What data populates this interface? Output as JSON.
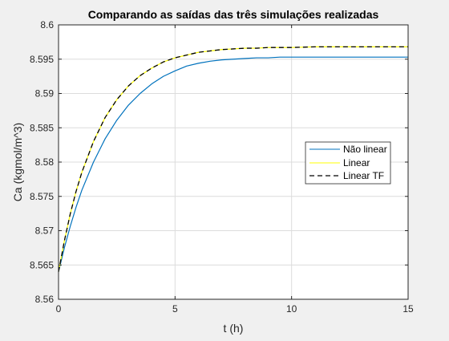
{
  "chart_data": {
    "type": "line",
    "title": "Comparando as saídas das três simulações realizadas",
    "xlabel": "t (h)",
    "ylabel": "Ca (kgmol/m^3)",
    "xlim": [
      0,
      15
    ],
    "ylim": [
      8.56,
      8.6
    ],
    "x_ticks": [
      "0",
      "5",
      "10",
      "15"
    ],
    "y_ticks": [
      "8.56",
      "8.565",
      "8.57",
      "8.575",
      "8.58",
      "8.585",
      "8.59",
      "8.595",
      "8.6"
    ],
    "grid": true,
    "legend_placement": "right",
    "x": [
      0,
      0.25,
      0.5,
      0.75,
      1,
      1.5,
      2,
      2.5,
      3,
      3.5,
      4,
      4.5,
      5,
      5.5,
      6,
      6.5,
      7,
      7.5,
      8,
      8.5,
      9,
      9.5,
      10,
      11,
      12,
      13,
      14,
      15
    ],
    "series": [
      {
        "name": "Não linear",
        "color": "#0072bd",
        "style": "solid",
        "values": [
          8.564,
          8.5675,
          8.5706,
          8.5734,
          8.5759,
          8.58,
          8.5834,
          8.5861,
          8.5883,
          8.59,
          8.5914,
          8.5925,
          8.5933,
          8.594,
          8.5944,
          8.5947,
          8.5949,
          8.595,
          8.5951,
          8.5952,
          8.5952,
          8.5953,
          8.5953,
          8.5953,
          8.5953,
          8.5953,
          8.5953,
          8.5953
        ]
      },
      {
        "name": "Linear",
        "color": "#ffff00",
        "style": "solid",
        "values": [
          8.564,
          8.5685,
          8.5724,
          8.5757,
          8.5785,
          8.583,
          8.5865,
          8.5891,
          8.5911,
          8.5926,
          8.5937,
          8.5946,
          8.5952,
          8.5956,
          8.596,
          8.5962,
          8.5964,
          8.5965,
          8.5966,
          8.5966,
          8.5967,
          8.5967,
          8.5967,
          8.5968,
          8.5968,
          8.5968,
          8.5968,
          8.5968
        ]
      },
      {
        "name": "Linear TF",
        "color": "#000000",
        "style": "dashed",
        "values": [
          8.564,
          8.5685,
          8.5724,
          8.5757,
          8.5785,
          8.583,
          8.5865,
          8.5891,
          8.5911,
          8.5926,
          8.5937,
          8.5946,
          8.5952,
          8.5956,
          8.596,
          8.5962,
          8.5964,
          8.5965,
          8.5966,
          8.5966,
          8.5967,
          8.5967,
          8.5967,
          8.5968,
          8.5968,
          8.5968,
          8.5968,
          8.5968
        ]
      }
    ]
  }
}
